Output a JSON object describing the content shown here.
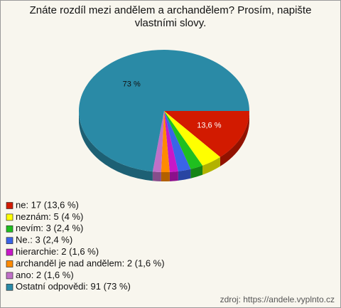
{
  "chart_data": {
    "type": "pie",
    "title": "Znáte rozdíl mezi andělem a archandělem? Prosím, napište vlastními slovy.",
    "categories": [
      "ne: 17 (13,6 %)",
      "neznám: 5 (4 %)",
      "nevím: 3 (2,4 %)",
      "Ne.: 3 (2,4 %)",
      "hierarchie: 2 (1,6 %)",
      "archanděl je nad andělem: 2 (1,6 %)",
      "ano: 2 (1,6 %)",
      "Ostatní odpovědi: 91 (73 %)"
    ],
    "values": [
      13.6,
      4,
      2.4,
      2.4,
      1.6,
      1.6,
      1.6,
      73
    ],
    "value_labels": [
      "13,6 %",
      null,
      null,
      null,
      null,
      null,
      null,
      "73 %"
    ],
    "colors": [
      "#d21a00",
      "#ffff00",
      "#1fbf1f",
      "#3a64e8",
      "#c818c8",
      "#ff8a00",
      "#c070c8",
      "#2a8aa6"
    ],
    "source": "zdroj: https://andele.vyplnto.cz"
  }
}
